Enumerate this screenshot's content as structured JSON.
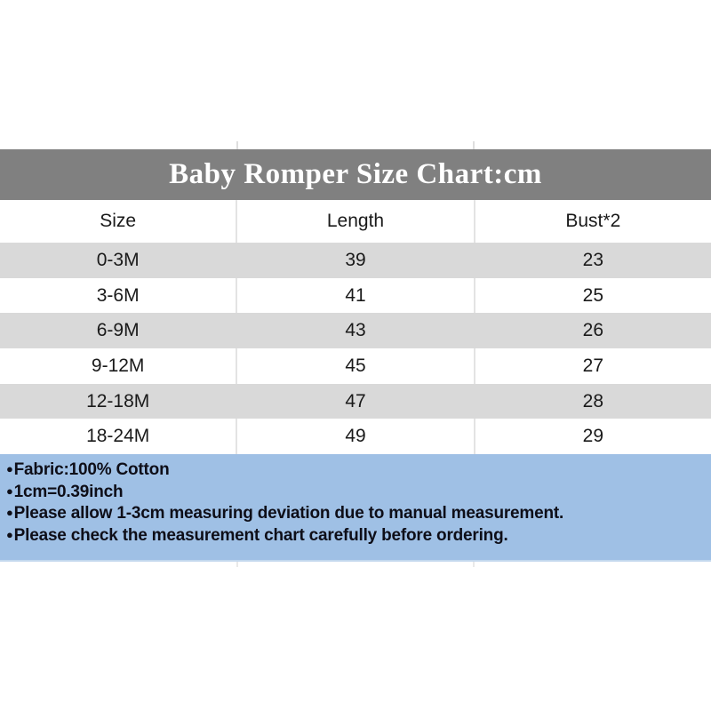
{
  "chart_data": {
    "type": "table",
    "title": "Baby Romper Size Chart:cm",
    "units": "cm",
    "columns": [
      "Size",
      "Length",
      "Bust*2"
    ],
    "rows": [
      [
        "0-3M",
        "39",
        "23"
      ],
      [
        "3-6M",
        "41",
        "25"
      ],
      [
        "6-9M",
        "43",
        "26"
      ],
      [
        "9-12M",
        "45",
        "27"
      ],
      [
        "12-18M",
        "47",
        "28"
      ],
      [
        "18-24M",
        "49",
        "29"
      ]
    ],
    "layout": {
      "title_band_color": "#808080",
      "title_text_color": "#ffffff",
      "stripe_color": "#d9d9d9",
      "divider_color": "#e3e3e3",
      "grid": "off",
      "cell_alignment": "center"
    }
  },
  "notes": {
    "bg_color": "#9fc0e5",
    "text_color": "#0e0e18",
    "bullet": "●",
    "items": [
      "Fabric:100% Cotton",
      "1cm=0.39inch",
      "Please allow 1-3cm measuring deviation due to manual measurement.",
      "Please check the measurement chart carefully before ordering."
    ]
  }
}
